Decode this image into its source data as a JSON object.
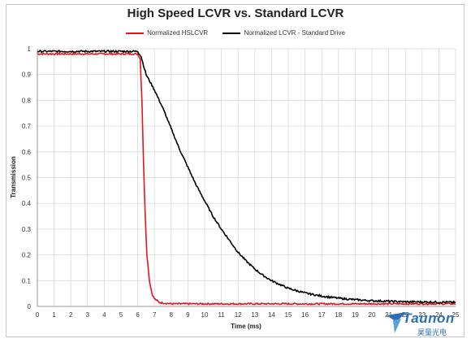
{
  "chart_data": {
    "type": "line",
    "title": "High Speed LCVR vs. Standard LCVR",
    "xlabel": "Time (ms)",
    "ylabel": "Transmission",
    "xlim": [
      0,
      25
    ],
    "ylim": [
      0,
      1
    ],
    "x_ticks": [
      "0",
      "1",
      "2",
      "3",
      "4",
      "5",
      "6",
      "7",
      "8",
      "9",
      "10",
      "11",
      "12",
      "13",
      "14",
      "15",
      "16",
      "17",
      "18",
      "19",
      "20",
      "21",
      "22",
      "23",
      "24",
      "25"
    ],
    "y_ticks": [
      "0",
      "0.1",
      "0.2",
      "0.3",
      "0.4",
      "0.5",
      "0.6",
      "0.7",
      "0.8",
      "0.9",
      "1"
    ],
    "grid": true,
    "legend_position": "top",
    "series": [
      {
        "name": "Normalized HSLCVR",
        "color": "#e8141b",
        "points": [
          [
            0,
            0.98
          ],
          [
            6.0,
            0.98
          ],
          [
            6.15,
            0.96
          ],
          [
            6.25,
            0.8
          ],
          [
            6.35,
            0.55
          ],
          [
            6.45,
            0.35
          ],
          [
            6.55,
            0.2
          ],
          [
            6.7,
            0.1
          ],
          [
            6.85,
            0.05
          ],
          [
            7.0,
            0.03
          ],
          [
            7.3,
            0.015
          ],
          [
            8,
            0.01
          ],
          [
            25,
            0.01
          ]
        ]
      },
      {
        "name": "Normalized LCVR - Standard Drive",
        "color": "#000000",
        "points": [
          [
            0,
            0.99
          ],
          [
            6.0,
            0.99
          ],
          [
            6.2,
            0.97
          ],
          [
            6.5,
            0.9
          ],
          [
            7.0,
            0.84
          ],
          [
            7.5,
            0.77
          ],
          [
            8.0,
            0.69
          ],
          [
            8.5,
            0.61
          ],
          [
            9.0,
            0.54
          ],
          [
            9.5,
            0.47
          ],
          [
            10.0,
            0.41
          ],
          [
            10.5,
            0.35
          ],
          [
            11.0,
            0.3
          ],
          [
            11.5,
            0.255
          ],
          [
            12.0,
            0.21
          ],
          [
            12.5,
            0.175
          ],
          [
            13.0,
            0.145
          ],
          [
            13.5,
            0.12
          ],
          [
            14.0,
            0.1
          ],
          [
            14.5,
            0.085
          ],
          [
            15.0,
            0.07
          ],
          [
            16.0,
            0.052
          ],
          [
            17.0,
            0.04
          ],
          [
            18.0,
            0.032
          ],
          [
            19.0,
            0.026
          ],
          [
            20.0,
            0.022
          ],
          [
            22.0,
            0.018
          ],
          [
            25.0,
            0.016
          ]
        ]
      }
    ]
  },
  "watermark": {
    "text": "Taunon",
    "subtext": "昊量光电",
    "color": "#2a6fb5"
  }
}
